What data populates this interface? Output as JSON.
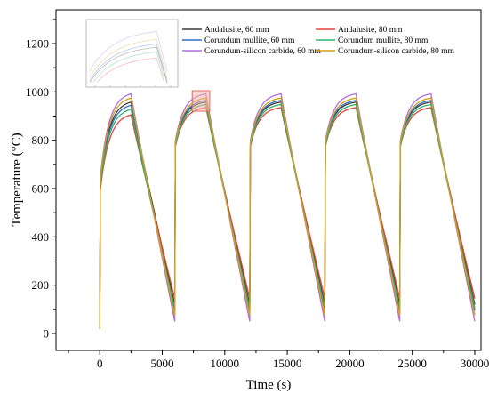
{
  "chart_data": {
    "type": "line",
    "title": "",
    "xlabel": "Time (s)",
    "ylabel": "Temperature (°C)",
    "xlim": [
      -3500,
      30500
    ],
    "ylim": [
      -70,
      1340
    ],
    "xticks": [
      0,
      5000,
      10000,
      15000,
      20000,
      25000,
      30000
    ],
    "xtick_labels": [
      "0",
      "5000",
      "10000",
      "15000",
      "20000",
      "25000",
      "30000"
    ],
    "yticks": [
      0,
      200,
      400,
      600,
      800,
      1000,
      1200
    ],
    "ytick_labels": [
      "0",
      "200",
      "400",
      "600",
      "800",
      "1000",
      "1200"
    ],
    "grid": false,
    "legend_position": "top-right",
    "cycle_period_s": 6000,
    "heating_time_s": 2500,
    "start_temperature": 20,
    "series": [
      {
        "name": "Andalusite, 60 mm",
        "color": "#3a3a3a",
        "peak": 958,
        "trough": 120,
        "first_peak": 958
      },
      {
        "name": "Andalusite, 80 mm",
        "color": "#e8413c",
        "peak": 935,
        "trough": 145,
        "first_peak": 905
      },
      {
        "name": "Corundum mullite, 60 mm",
        "color": "#2f6ec9",
        "peak": 965,
        "trough": 95,
        "first_peak": 945
      },
      {
        "name": "Corundum mullite, 80 mm",
        "color": "#2db36a",
        "peak": 948,
        "trough": 105,
        "first_peak": 928
      },
      {
        "name": "Corundum-silicon carbide, 60 mm",
        "color": "#b06ddb",
        "peak": 992,
        "trough": 50,
        "first_peak": 992
      },
      {
        "name": "Corundum-silicon carbide, 80 mm",
        "color": "#d4a20a",
        "peak": 975,
        "trough": 75,
        "first_peak": 975
      }
    ],
    "inset": {
      "description_hidden": true,
      "zoom_window": {
        "x": [
          7400,
          8800
        ],
        "y": [
          920,
          1005
        ]
      }
    }
  },
  "colors": {
    "highlight_box_fill": "#f4b6a8",
    "highlight_box_stroke": "#e0705c"
  }
}
